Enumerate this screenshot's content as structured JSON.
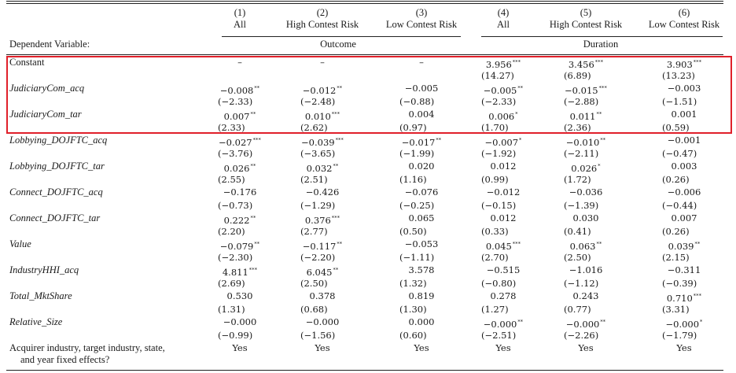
{
  "columns": [
    {
      "num": "(1)",
      "name": "All"
    },
    {
      "num": "(2)",
      "name": "High Contest Risk"
    },
    {
      "num": "(3)",
      "name": "Low Contest Risk"
    },
    {
      "num": "(4)",
      "name": "All"
    },
    {
      "num": "(5)",
      "name": "High Contest Risk"
    },
    {
      "num": "(6)",
      "name": "Low Contest Risk"
    }
  ],
  "dep_label": "Dependent Variable:",
  "groups": [
    "Outcome",
    "Duration"
  ],
  "rows": [
    {
      "label": "Constant",
      "italic": false,
      "coef": [
        [
          "–",
          ""
        ],
        [
          "–",
          ""
        ],
        [
          "–",
          ""
        ],
        [
          "3.956",
          "***"
        ],
        [
          "3.456",
          "***"
        ],
        [
          "3.903",
          "***"
        ]
      ],
      "t": [
        "",
        "",
        "",
        "(14.27)",
        "(6.89)",
        "(13.23)"
      ]
    },
    {
      "label": "JudiciaryCom_acq",
      "italic": true,
      "coef": [
        [
          "−0.008",
          "**"
        ],
        [
          "−0.012",
          "**"
        ],
        [
          "−0.005",
          ""
        ],
        [
          "−0.005",
          "**"
        ],
        [
          "−0.015",
          "***"
        ],
        [
          "−0.003",
          ""
        ]
      ],
      "t": [
        "(−2.33)",
        "(−2.48)",
        "(−0.88)",
        "(−2.33)",
        "(−2.88)",
        "(−1.51)"
      ]
    },
    {
      "label": "JudiciaryCom_tar",
      "italic": true,
      "coef": [
        [
          "0.007",
          "**"
        ],
        [
          "0.010",
          "***"
        ],
        [
          "0.004",
          ""
        ],
        [
          "0.006",
          "*"
        ],
        [
          "0.011",
          "**"
        ],
        [
          "0.001",
          ""
        ]
      ],
      "t": [
        "(2.33)",
        "(2.62)",
        "(0.97)",
        "(1.70)",
        "(2.36)",
        "(0.59)"
      ]
    },
    {
      "label": "Lobbying_DOJFTC_acq",
      "italic": true,
      "coef": [
        [
          "−0.027",
          "***"
        ],
        [
          "−0.039",
          "***"
        ],
        [
          "−0.017",
          "**"
        ],
        [
          "−0.007",
          "*"
        ],
        [
          "−0.010",
          "**"
        ],
        [
          "−0.001",
          ""
        ]
      ],
      "t": [
        "(−3.76)",
        "(−3.65)",
        "(−1.99)",
        "(−1.92)",
        "(−2.11)",
        "(−0.47)"
      ]
    },
    {
      "label": "Lobbying_DOJFTC_tar",
      "italic": true,
      "coef": [
        [
          "0.026",
          "**"
        ],
        [
          "0.032",
          "**"
        ],
        [
          "0.020",
          ""
        ],
        [
          "0.012",
          ""
        ],
        [
          "0.026",
          "*"
        ],
        [
          "0.003",
          ""
        ]
      ],
      "t": [
        "(2.55)",
        "(2.51)",
        "(1.16)",
        "(0.99)",
        "(1.72)",
        "(0.26)"
      ]
    },
    {
      "label": "Connect_DOJFTC_acq",
      "italic": true,
      "coef": [
        [
          "−0.176",
          ""
        ],
        [
          "−0.426",
          ""
        ],
        [
          "−0.076",
          ""
        ],
        [
          "−0.012",
          ""
        ],
        [
          "−0.036",
          ""
        ],
        [
          "−0.006",
          ""
        ]
      ],
      "t": [
        "(−0.73)",
        "(−1.29)",
        "(−0.25)",
        "(−0.15)",
        "(−1.39)",
        "(−0.44)"
      ]
    },
    {
      "label": "Connect_DOJFTC_tar",
      "italic": true,
      "coef": [
        [
          "0.222",
          "**"
        ],
        [
          "0.376",
          "***"
        ],
        [
          "0.065",
          ""
        ],
        [
          "0.012",
          ""
        ],
        [
          "0.030",
          ""
        ],
        [
          "0.007",
          ""
        ]
      ],
      "t": [
        "(2.20)",
        "(2.77)",
        "(0.50)",
        "(0.33)",
        "(0.41)",
        "(0.26)"
      ]
    },
    {
      "label": "Value",
      "italic": true,
      "coef": [
        [
          "−0.079",
          "**"
        ],
        [
          "−0.117",
          "**"
        ],
        [
          "−0.053",
          ""
        ],
        [
          "0.045",
          "***"
        ],
        [
          "0.063",
          "**"
        ],
        [
          "0.039",
          "**"
        ]
      ],
      "t": [
        "(−2.30)",
        "(−2.20)",
        "(−1.11)",
        "(2.70)",
        "(2.50)",
        "(2.15)"
      ]
    },
    {
      "label": "IndustryHHI_acq",
      "italic": true,
      "coef": [
        [
          "4.811",
          "***"
        ],
        [
          "6.045",
          "**"
        ],
        [
          "3.578",
          ""
        ],
        [
          "−0.515",
          ""
        ],
        [
          "−1.016",
          ""
        ],
        [
          "−0.311",
          ""
        ]
      ],
      "t": [
        "(2.69)",
        "(2.50)",
        "(1.32)",
        "(−0.80)",
        "(−1.12)",
        "(−0.39)"
      ]
    },
    {
      "label": "Total_MktShare",
      "italic": true,
      "coef": [
        [
          "0.530",
          ""
        ],
        [
          "0.378",
          ""
        ],
        [
          "0.819",
          ""
        ],
        [
          "0.278",
          ""
        ],
        [
          "0.243",
          ""
        ],
        [
          "0.710",
          "***"
        ]
      ],
      "t": [
        "(1.31)",
        "(0.68)",
        "(1.30)",
        "(1.27)",
        "(0.77)",
        "(3.31)"
      ]
    },
    {
      "label": "Relative_Size",
      "italic": true,
      "coef": [
        [
          "−0.000",
          ""
        ],
        [
          "−0.000",
          ""
        ],
        [
          "0.000",
          ""
        ],
        [
          "−0.000",
          "**"
        ],
        [
          "−0.000",
          "**"
        ],
        [
          "−0.000",
          "*"
        ]
      ],
      "t": [
        "(−0.99)",
        "(−1.56)",
        "(0.60)",
        "(−2.51)",
        "(−2.26)",
        "(−1.79)"
      ]
    }
  ],
  "fixed_effects": {
    "label_line1": "Acquirer industry, target industry, state,",
    "label_line2": "and year fixed effects?",
    "values": [
      "Yes",
      "Yes",
      "Yes",
      "Yes",
      "Yes",
      "Yes"
    ]
  },
  "highlight_color": "#e0202a"
}
